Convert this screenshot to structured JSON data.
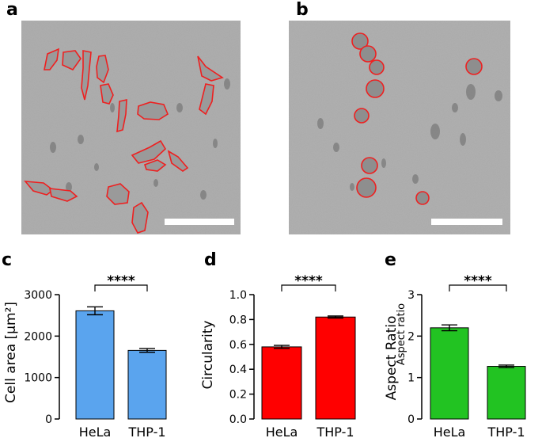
{
  "panels": {
    "a": {
      "letter": "a"
    },
    "b": {
      "letter": "b"
    },
    "c": {
      "letter": "c"
    },
    "d": {
      "letter": "d"
    },
    "e": {
      "letter": "e"
    }
  },
  "colors": {
    "outline": "#ee2020",
    "bar_c": "#5aa4ee",
    "bar_d": "#ff0000",
    "bar_e": "#22c322",
    "micro_bg": "#a9a9a9",
    "scale_bar": "#ffffff"
  },
  "chart_data": [
    {
      "type": "bar",
      "panel": "c",
      "categories": [
        "HeLa",
        "THP-1"
      ],
      "values": [
        2610,
        1655
      ],
      "errors": [
        95,
        45
      ],
      "ylabel": "Cell area [µm²]",
      "ylim": [
        0,
        3000
      ],
      "yticks": [
        "0",
        "1000",
        "2000",
        "3000"
      ],
      "significance": "****",
      "color": "#5aa4ee"
    },
    {
      "type": "bar",
      "panel": "d",
      "categories": [
        "HeLa",
        "THP-1"
      ],
      "values": [
        0.58,
        0.82
      ],
      "errors": [
        0.012,
        0.008
      ],
      "ylabel": "Circularity",
      "ylim": [
        0,
        1.0
      ],
      "yticks": [
        "0.0",
        "0.2",
        "0.4",
        "0.6",
        "0.8",
        "1.0"
      ],
      "significance": "****",
      "color": "#ff0000"
    },
    {
      "type": "bar",
      "panel": "e",
      "categories": [
        "HeLa",
        "THP-1"
      ],
      "values": [
        2.2,
        1.27
      ],
      "errors": [
        0.07,
        0.03
      ],
      "ylabel": "Aspect Ratio",
      "ylabel_overlay": "Aspect ratio",
      "ylim": [
        0,
        3
      ],
      "yticks": [
        "0",
        "1",
        "2",
        "3"
      ],
      "significance": "****",
      "color": "#22c322"
    }
  ]
}
